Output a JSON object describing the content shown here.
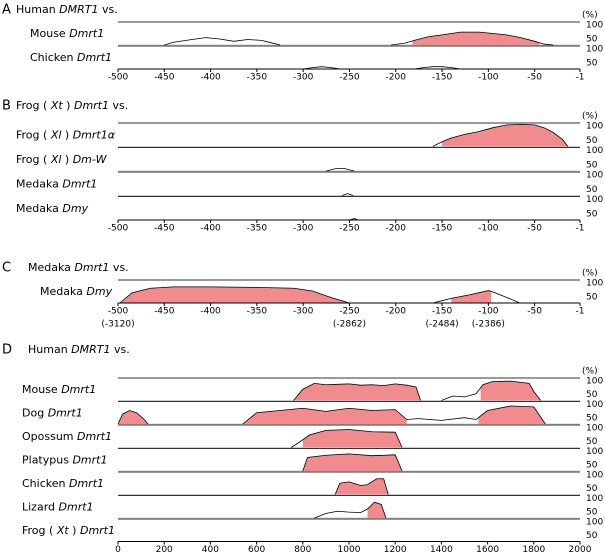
{
  "chart_data": [
    {
      "type": "vista",
      "letter": "A",
      "title": [
        {
          "text": "Human "
        },
        {
          "text": "DMRT1",
          "italic": true
        },
        {
          "text": " vs."
        }
      ],
      "xlim": [
        -500,
        -1
      ],
      "xticks": [
        -500,
        -450,
        -400,
        -350,
        -300,
        -250,
        -200,
        -150,
        -100,
        -50,
        -1
      ],
      "ylim": [
        50,
        100
      ],
      "yticks": [
        50,
        100
      ],
      "y_unit": "(%)",
      "line_color": "#000000",
      "fill_color": "#f28b8e",
      "tracks": [
        {
          "label": [
            {
              "text": "Mouse "
            },
            {
              "text": "Dmrt1",
              "italic": true
            }
          ],
          "x": [
            -450,
            -440,
            -420,
            -405,
            -390,
            -375,
            -360,
            -345,
            -335,
            -325,
            null,
            -205,
            -190,
            -180,
            -165,
            -150,
            -130,
            -110,
            -95,
            -80,
            -65,
            -50,
            -40,
            -30
          ],
          "values": [
            50,
            56,
            62,
            66,
            63,
            58,
            62,
            60,
            55,
            50,
            null,
            50,
            54,
            60,
            68,
            72,
            78,
            78,
            75,
            72,
            66,
            58,
            52,
            50
          ],
          "shaded": [
            [
              -182,
              -45
            ]
          ]
        },
        {
          "label": [
            {
              "text": "Chicken "
            },
            {
              "text": "Dmrt1",
              "italic": true
            }
          ],
          "x": [
            -300,
            -290,
            -280,
            -270,
            -260,
            null,
            -180,
            -170,
            -160,
            -150,
            -140,
            -130
          ],
          "values": [
            50,
            53,
            55,
            53,
            50,
            null,
            50,
            53,
            55,
            55,
            53,
            50
          ],
          "shaded": []
        }
      ]
    },
    {
      "type": "vista",
      "letter": "B",
      "title": [
        {
          "text": "Frog ( "
        },
        {
          "text": "Xt",
          "italic": true
        },
        {
          "text": " ) "
        },
        {
          "text": "Dmrt1",
          "italic": true
        },
        {
          "text": " vs."
        }
      ],
      "xlim": [
        -500,
        -1
      ],
      "xticks": [
        -500,
        -450,
        -400,
        -350,
        -300,
        -250,
        -200,
        -150,
        -100,
        -50,
        -1
      ],
      "ylim": [
        50,
        100
      ],
      "yticks": [
        50,
        100
      ],
      "y_unit": "(%)",
      "line_color": "#000000",
      "fill_color": "#f28b8e",
      "tracks": [
        {
          "label": [
            {
              "text": "Frog ( "
            },
            {
              "text": "Xl",
              "italic": true
            },
            {
              "text": " ) "
            },
            {
              "text": "Dmrt1α",
              "italic": true
            }
          ],
          "x": [
            -160,
            -150,
            -140,
            -125,
            -110,
            -95,
            -80,
            -65,
            -50,
            -40,
            -30,
            -20,
            -14
          ],
          "values": [
            50,
            60,
            68,
            76,
            82,
            90,
            96,
            97,
            96,
            90,
            80,
            65,
            50
          ],
          "shaded": [
            [
              -150,
              -15
            ]
          ]
        },
        {
          "label": [
            {
              "text": "Frog ( "
            },
            {
              "text": "Xl",
              "italic": true
            },
            {
              "text": " ) "
            },
            {
              "text": "Dm-W",
              "italic": true
            }
          ],
          "x": [
            -275,
            -265,
            -255,
            -245
          ],
          "values": [
            50,
            55,
            55,
            50
          ],
          "shaded": []
        },
        {
          "label": [
            {
              "text": "Medaka "
            },
            {
              "text": "Dmrt1",
              "italic": true
            }
          ],
          "x": [
            -258,
            -252,
            -246
          ],
          "values": [
            50,
            54,
            50
          ],
          "shaded": []
        },
        {
          "label": [
            {
              "text": "Medaka "
            },
            {
              "text": "Dmy",
              "italic": true
            }
          ],
          "x": [
            -250,
            -245,
            -240
          ],
          "values": [
            50,
            53,
            50
          ],
          "shaded": []
        }
      ]
    },
    {
      "type": "vista",
      "letter": "C",
      "title": [
        {
          "text": "Medaka "
        },
        {
          "text": "Dmrt1",
          "italic": true
        },
        {
          "text": " vs."
        }
      ],
      "xlim": [
        -500,
        -1
      ],
      "xticks": [
        -500,
        -450,
        -400,
        -350,
        -300,
        -250,
        -200,
        -150,
        -100,
        -50,
        -1
      ],
      "extra_labels": [
        {
          "value": -500,
          "label": "(-3120)"
        },
        {
          "value": -250,
          "label": "(-2862)"
        },
        {
          "value": -150,
          "label": "(-2484)"
        },
        {
          "value": -100,
          "label": "(-2386)"
        }
      ],
      "ylim": [
        50,
        100
      ],
      "yticks": [
        50,
        100
      ],
      "y_unit": "(%)",
      "line_color": "#000000",
      "fill_color": "#f28b8e",
      "tracks": [
        {
          "label": [
            {
              "text": "Medaka "
            },
            {
              "text": "Dmy",
              "italic": true
            }
          ],
          "x": [
            -498,
            -485,
            -465,
            -440,
            -400,
            -350,
            -310,
            -290,
            -270,
            -250,
            null,
            -160,
            -150,
            -140,
            -120,
            -100,
            -95,
            -80,
            -66
          ],
          "values": [
            50,
            72,
            82,
            85,
            85,
            84,
            82,
            76,
            62,
            50,
            null,
            50,
            55,
            60,
            68,
            77,
            74,
            62,
            50
          ],
          "shaded": [
            [
              -498,
              -250
            ],
            [
              -140,
              -97
            ]
          ]
        }
      ]
    },
    {
      "type": "vista",
      "letter": "D",
      "title": [
        {
          "text": "Human "
        },
        {
          "text": "DMRT1",
          "italic": true
        },
        {
          "text": " vs."
        }
      ],
      "xlim": [
        0,
        2000
      ],
      "xticks": [
        0,
        200,
        400,
        600,
        800,
        1000,
        1200,
        1400,
        1600,
        1800,
        2000
      ],
      "ylim": [
        50,
        100
      ],
      "yticks": [
        50,
        100
      ],
      "y_unit": "(%)",
      "line_color": "#000000",
      "fill_color": "#f28b8e",
      "tracks": [
        {
          "label": [
            {
              "text": "Mouse "
            },
            {
              "text": "Dmrt1",
              "italic": true
            }
          ],
          "x": [
            760,
            800,
            850,
            900,
            950,
            1000,
            1050,
            1100,
            1150,
            1200,
            1250,
            1290,
            1310,
            null,
            1400,
            1450,
            1500,
            1550,
            1580,
            1620,
            1700,
            1780,
            1800,
            1830
          ],
          "values": [
            50,
            75,
            88,
            85,
            86,
            87,
            84,
            85,
            83,
            87,
            84,
            80,
            50,
            null,
            50,
            60,
            58,
            65,
            85,
            92,
            93,
            88,
            70,
            50
          ],
          "shaded": [
            [
              760,
              1310
            ],
            [
              1570,
              1830
            ]
          ]
        },
        {
          "label": [
            {
              "text": "Dog "
            },
            {
              "text": "Dmrt1",
              "italic": true
            }
          ],
          "x": [
            0,
            20,
            50,
            80,
            110,
            130,
            null,
            540,
            600,
            700,
            800,
            900,
            1000,
            1100,
            1200,
            1250,
            1300,
            1400,
            1500,
            1550,
            1600,
            1700,
            1800,
            1850
          ],
          "values": [
            50,
            72,
            80,
            75,
            62,
            50,
            null,
            50,
            75,
            80,
            85,
            78,
            85,
            80,
            82,
            60,
            62,
            58,
            64,
            60,
            80,
            90,
            88,
            50
          ],
          "shaded": [
            [
              0,
              130
            ],
            [
              540,
              1250
            ],
            [
              1560,
              1850
            ]
          ]
        },
        {
          "label": [
            {
              "text": "Opossum "
            },
            {
              "text": "Dmrt1",
              "italic": true
            }
          ],
          "x": [
            750,
            780,
            830,
            900,
            1000,
            1100,
            1200,
            1230
          ],
          "values": [
            50,
            60,
            78,
            88,
            90,
            85,
            84,
            50
          ],
          "shaded": [
            [
              800,
              1230
            ]
          ]
        },
        {
          "label": [
            {
              "text": "Platypus "
            },
            {
              "text": "Dmrt1",
              "italic": true
            }
          ],
          "x": [
            800,
            820,
            900,
            1000,
            1100,
            1200,
            1230
          ],
          "values": [
            50,
            80,
            85,
            88,
            84,
            86,
            50
          ],
          "shaded": [
            [
              800,
              1230
            ]
          ]
        },
        {
          "label": [
            {
              "text": "Chicken "
            },
            {
              "text": "Dmrt1",
              "italic": true
            }
          ],
          "x": [
            940,
            960,
            1000,
            1050,
            1080,
            1120,
            1150,
            1170
          ],
          "values": [
            50,
            75,
            78,
            70,
            72,
            85,
            85,
            50
          ],
          "shaded": [
            [
              940,
              1170
            ]
          ]
        },
        {
          "label": [
            {
              "text": "Lizard "
            },
            {
              "text": "Dmrt1",
              "italic": true
            }
          ],
          "x": [
            850,
            900,
            950,
            1000,
            1050,
            1080,
            1110,
            1140,
            1160
          ],
          "values": [
            50,
            60,
            65,
            63,
            62,
            70,
            85,
            80,
            50
          ],
          "shaded": [
            [
              1080,
              1160
            ]
          ]
        },
        {
          "label": [
            {
              "text": "Frog ( "
            },
            {
              "text": "Xt",
              "italic": true
            },
            {
              "text": " ) "
            },
            {
              "text": "Dmrt1",
              "italic": true
            }
          ],
          "x": [],
          "values": [],
          "shaded": []
        }
      ]
    }
  ]
}
